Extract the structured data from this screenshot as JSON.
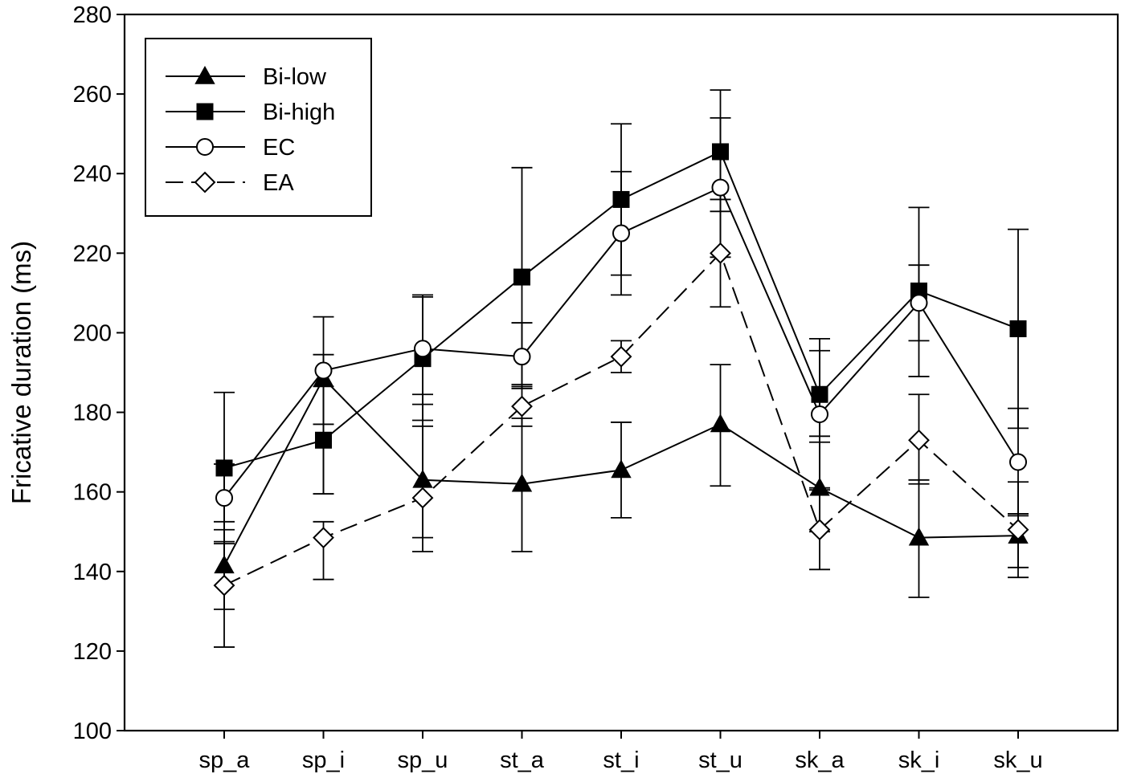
{
  "chart_data": {
    "type": "line",
    "ylabel": "Fricative duration (ms)",
    "xlabel": "",
    "ylim": [
      100,
      280
    ],
    "yticks": [
      100,
      120,
      140,
      160,
      180,
      200,
      220,
      240,
      260,
      280
    ],
    "categories": [
      "sp_a",
      "sp_i",
      "sp_u",
      "st_a",
      "st_i",
      "st_u",
      "sk_a",
      "sk_i",
      "sk_u"
    ],
    "grid": false,
    "legend_position": "top-left",
    "series": [
      {
        "name": "Bi-low",
        "marker": "triangle",
        "fill": "#000000",
        "dash": "solid",
        "values": [
          141.5,
          188.5,
          163,
          162,
          165.5,
          177,
          161,
          148.5,
          149
        ],
        "err_low": [
          130.5,
          159.5,
          148.5,
          145,
          153.5,
          161.5,
          150,
          133.5,
          141
        ],
        "err_high": [
          152.5,
          194.5,
          176.5,
          178.5,
          177.5,
          192,
          172.5,
          163,
          154.5
        ]
      },
      {
        "name": "Bi-high",
        "marker": "square",
        "fill": "#000000",
        "dash": "solid",
        "values": [
          166,
          173,
          193.5,
          214,
          233.5,
          245.5,
          184.5,
          210.5,
          201
        ],
        "err_low": [
          147,
          159.5,
          178,
          187,
          214.5,
          230.5,
          174,
          189,
          176
        ],
        "err_high": [
          185,
          186.5,
          209,
          241.5,
          252.5,
          261,
          195.5,
          231.5,
          226
        ]
      },
      {
        "name": "EC",
        "marker": "circle",
        "fill": "#ffffff",
        "dash": "solid",
        "values": [
          158.5,
          190.5,
          196,
          194,
          225,
          236.5,
          179.5,
          207.5,
          167.5
        ],
        "err_low": [
          150.5,
          177,
          182,
          186,
          209.5,
          219,
          160.5,
          198,
          154
        ],
        "err_high": [
          167,
          204,
          209.5,
          202.5,
          240.5,
          254,
          198.5,
          217,
          181
        ]
      },
      {
        "name": "EA",
        "marker": "diamond",
        "fill": "#ffffff",
        "dash": "dashed",
        "values": [
          136.5,
          148.5,
          158.5,
          181.5,
          194,
          220,
          150.5,
          173,
          150.5
        ],
        "err_low": [
          121,
          138,
          145,
          176.5,
          190,
          206.5,
          140.5,
          162,
          138.5
        ],
        "err_high": [
          147.5,
          152.5,
          184.5,
          186.5,
          198,
          233.5,
          161,
          184.5,
          162.5
        ]
      }
    ]
  }
}
